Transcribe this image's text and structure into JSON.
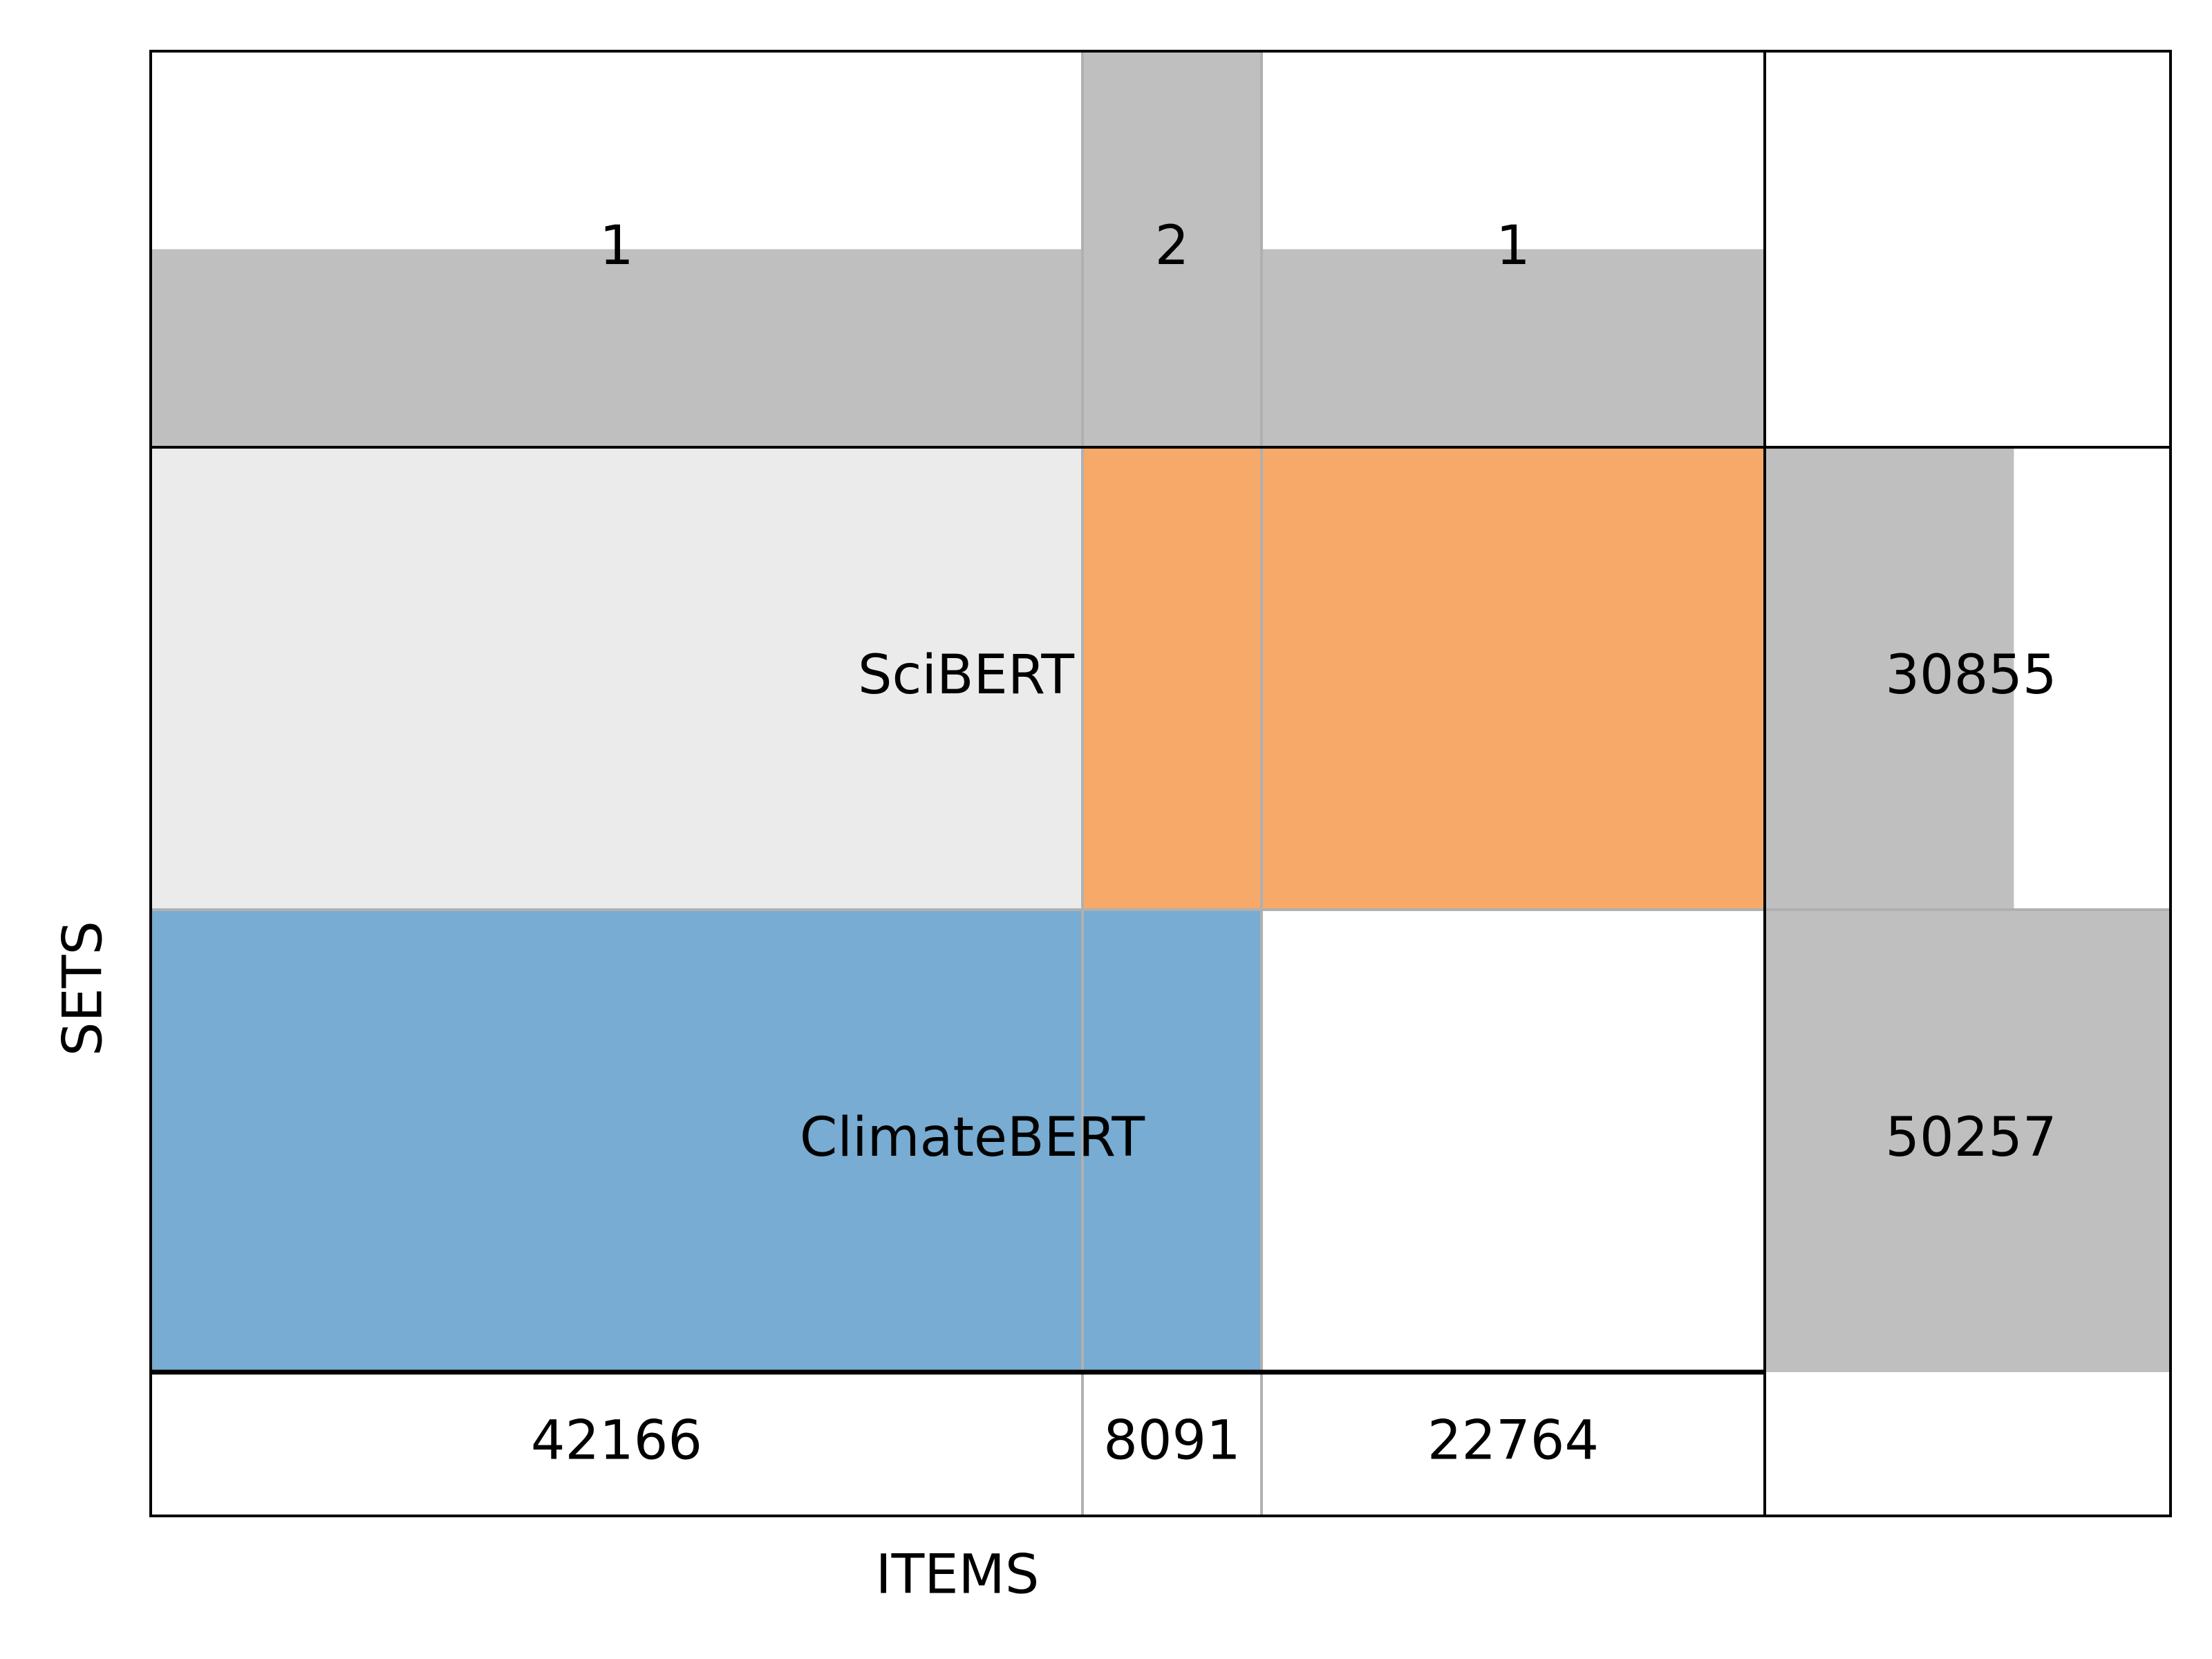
{
  "chart_data": {
    "type": "table",
    "xlabel": "ITEMS",
    "ylabel": "SETS",
    "columns": [
      {
        "count": 1,
        "items": 42166,
        "sets": [
          "ClimateBERT"
        ]
      },
      {
        "count": 2,
        "items": 8091,
        "sets": [
          "SciBERT",
          "ClimateBERT"
        ]
      },
      {
        "count": 1,
        "items": 22764,
        "sets": [
          "SciBERT"
        ]
      }
    ],
    "sets": [
      {
        "name": "SciBERT",
        "size": 30855,
        "color": "#f6a968"
      },
      {
        "name": "ClimateBERT",
        "size": 50257,
        "color": "#78acd2"
      }
    ],
    "colors": {
      "bar": "#bfbfbf",
      "label_band": "#ebebeb",
      "grid": "#b0b0b0",
      "frame": "#000000"
    },
    "count_max": 2,
    "size_max": 50257,
    "grid": true
  }
}
